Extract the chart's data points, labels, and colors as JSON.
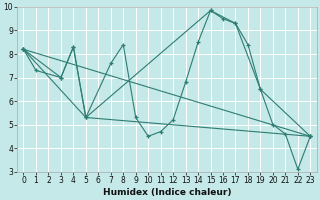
{
  "xlabel": "Humidex (Indice chaleur)",
  "bg_color": "#c5e8e8",
  "grid_color": "#ffffff",
  "line_color": "#2e7d72",
  "xlim": [
    -0.5,
    23.5
  ],
  "ylim": [
    3,
    10
  ],
  "xtick_labels": [
    "0",
    "1",
    "2",
    "3",
    "4",
    "5",
    "6",
    "7",
    "8",
    "9",
    "10",
    "11",
    "12",
    "13",
    "14",
    "15",
    "16",
    "17",
    "18",
    "19",
    "20",
    "21",
    "22",
    "23"
  ],
  "xticks": [
    0,
    1,
    2,
    3,
    4,
    5,
    6,
    7,
    8,
    9,
    10,
    11,
    12,
    13,
    14,
    15,
    16,
    17,
    18,
    19,
    20,
    21,
    22,
    23
  ],
  "yticks": [
    3,
    4,
    5,
    6,
    7,
    8,
    9,
    10
  ],
  "lines": [
    {
      "x": [
        0,
        1,
        3,
        4,
        5,
        7,
        8,
        9,
        10,
        11,
        12,
        13,
        14,
        15,
        16,
        17,
        18,
        19,
        20,
        21,
        22,
        23
      ],
      "y": [
        8.2,
        7.3,
        7.0,
        8.3,
        5.3,
        7.6,
        8.4,
        5.3,
        4.5,
        4.7,
        5.2,
        6.8,
        8.5,
        9.85,
        9.5,
        9.3,
        8.4,
        6.5,
        5.0,
        4.6,
        3.1,
        4.5
      ]
    },
    {
      "x": [
        0,
        23
      ],
      "y": [
        8.2,
        4.5
      ]
    },
    {
      "x": [
        0,
        3,
        4,
        5,
        23
      ],
      "y": [
        8.2,
        7.0,
        8.3,
        5.3,
        4.5
      ]
    },
    {
      "x": [
        0,
        5,
        15,
        17,
        19,
        23
      ],
      "y": [
        8.2,
        5.3,
        9.85,
        9.3,
        6.5,
        4.5
      ]
    }
  ]
}
